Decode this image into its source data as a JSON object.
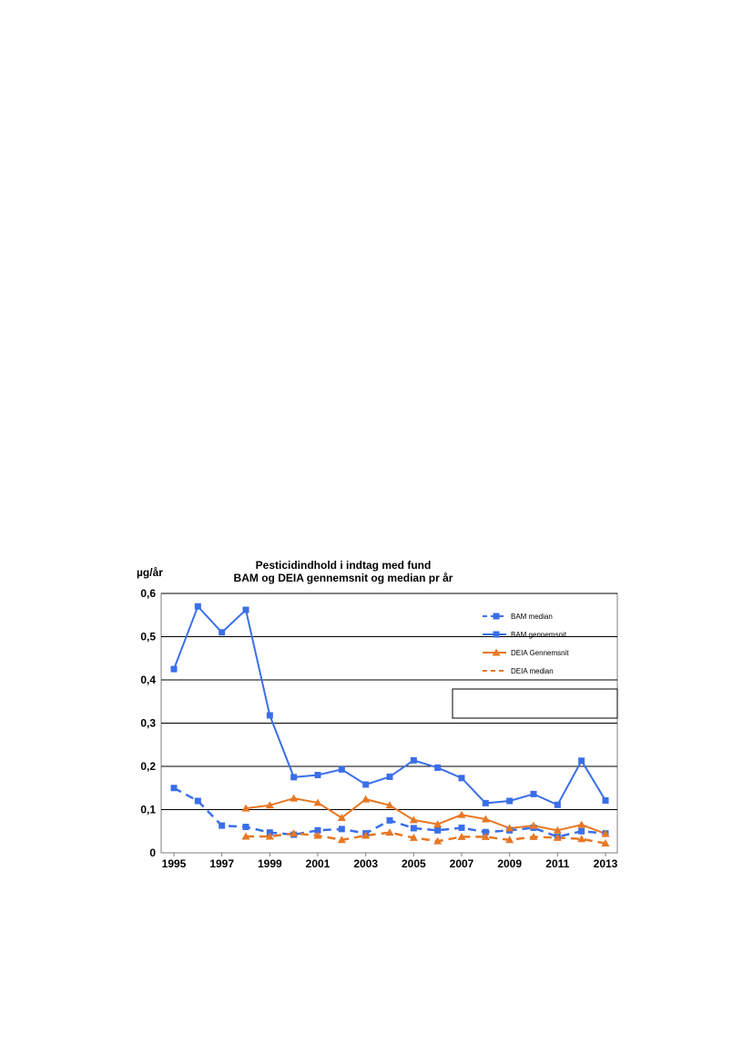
{
  "chart_data": {
    "type": "line",
    "title_line1": "Pesticidindhold i indtag med fund",
    "title_line2": "BAM og DEIA gennemsnit og median pr år",
    "ylabel": "µg/år",
    "ylim": [
      0,
      0.6
    ],
    "yticks": [
      "0",
      "0,1",
      "0,2",
      "0,3",
      "0,4",
      "0,5",
      "0,6"
    ],
    "xlim": [
      1995,
      2013
    ],
    "xtick_labels": [
      "1995",
      "1997",
      "1999",
      "2001",
      "2003",
      "2005",
      "2007",
      "2009",
      "2011",
      "2013"
    ],
    "grid": true,
    "legend_position": "top-right",
    "series": [
      {
        "name": "BAM median",
        "color": "#3a6fe8",
        "style": "dashed",
        "marker": "square",
        "points": [
          [
            1995,
            0.15
          ],
          [
            1996,
            0.12
          ],
          [
            1997,
            0.063
          ],
          [
            1998,
            0.06
          ],
          [
            1999,
            0.047
          ],
          [
            2000,
            0.042
          ],
          [
            2001,
            0.052
          ],
          [
            2002,
            0.055
          ],
          [
            2003,
            0.045
          ],
          [
            2004,
            0.075
          ],
          [
            2005,
            0.057
          ],
          [
            2006,
            0.052
          ],
          [
            2007,
            0.058
          ],
          [
            2008,
            0.048
          ],
          [
            2009,
            0.052
          ],
          [
            2010,
            0.058
          ],
          [
            2011,
            0.037
          ],
          [
            2012,
            0.05
          ],
          [
            2013,
            0.045
          ]
        ]
      },
      {
        "name": "BAM gennemsnit",
        "color": "#3a6fe8",
        "style": "solid",
        "marker": "square",
        "points": [
          [
            1995,
            0.425
          ],
          [
            1996,
            0.57
          ],
          [
            1997,
            0.51
          ],
          [
            1998,
            0.562
          ],
          [
            1999,
            0.318
          ],
          [
            2000,
            0.175
          ],
          [
            2001,
            0.18
          ],
          [
            2002,
            0.193
          ],
          [
            2003,
            0.158
          ],
          [
            2004,
            0.176
          ],
          [
            2005,
            0.214
          ],
          [
            2006,
            0.197
          ],
          [
            2007,
            0.173
          ],
          [
            2008,
            0.115
          ],
          [
            2009,
            0.12
          ],
          [
            2010,
            0.136
          ],
          [
            2011,
            0.111
          ],
          [
            2012,
            0.213
          ],
          [
            2013,
            0.121
          ]
        ]
      },
      {
        "name": "DEIA Gennemsnit",
        "color": "#e87722",
        "style": "solid",
        "marker": "triangle",
        "points": [
          [
            1998,
            0.103
          ],
          [
            1999,
            0.11
          ],
          [
            2000,
            0.126
          ],
          [
            2001,
            0.116
          ],
          [
            2002,
            0.081
          ],
          [
            2003,
            0.124
          ],
          [
            2004,
            0.11
          ],
          [
            2005,
            0.076
          ],
          [
            2006,
            0.066
          ],
          [
            2007,
            0.088
          ],
          [
            2008,
            0.078
          ],
          [
            2009,
            0.057
          ],
          [
            2010,
            0.063
          ],
          [
            2011,
            0.052
          ],
          [
            2012,
            0.065
          ],
          [
            2013,
            0.044
          ]
        ]
      },
      {
        "name": "DEIA median",
        "color": "#e87722",
        "style": "dashed",
        "marker": "triangle",
        "points": [
          [
            1998,
            0.038
          ],
          [
            1999,
            0.038
          ],
          [
            2000,
            0.045
          ],
          [
            2001,
            0.04
          ],
          [
            2002,
            0.03
          ],
          [
            2003,
            0.04
          ],
          [
            2004,
            0.047
          ],
          [
            2005,
            0.035
          ],
          [
            2006,
            0.027
          ],
          [
            2007,
            0.037
          ],
          [
            2008,
            0.037
          ],
          [
            2009,
            0.03
          ],
          [
            2010,
            0.037
          ],
          [
            2011,
            0.035
          ],
          [
            2012,
            0.032
          ],
          [
            2013,
            0.022
          ]
        ]
      }
    ]
  }
}
